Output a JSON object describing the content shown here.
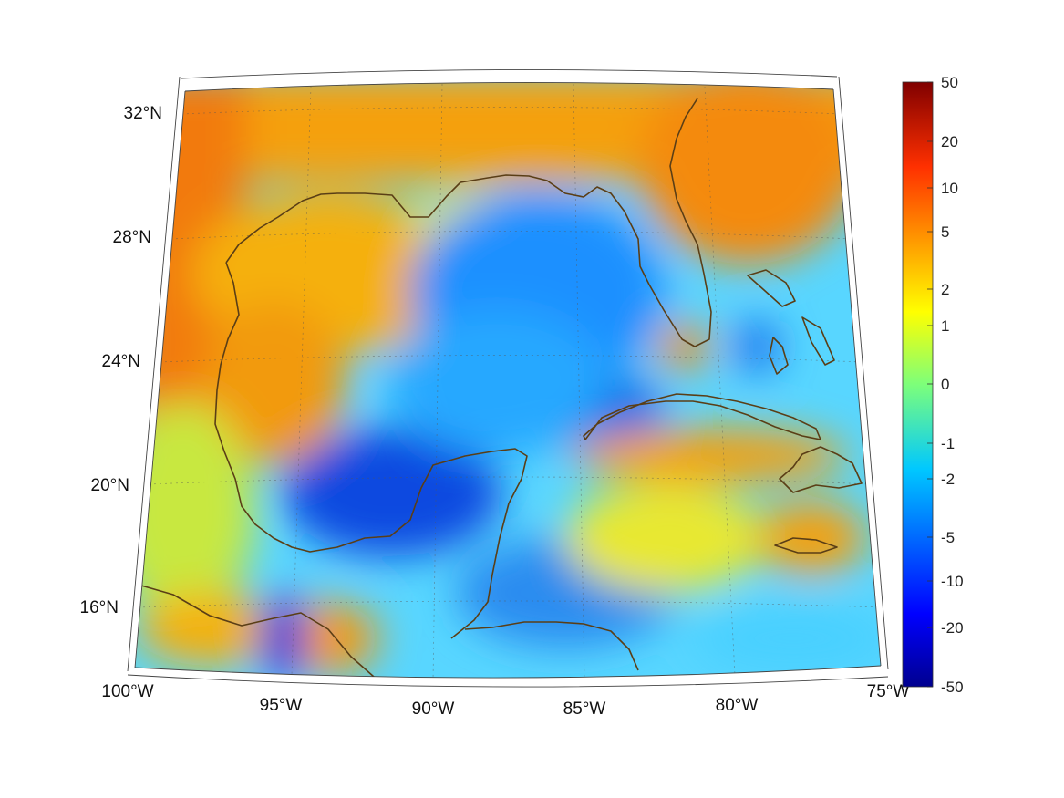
{
  "map": {
    "lon_labels": [
      "100°W",
      "95°W",
      "90°W",
      "85°W",
      "80°W",
      "75°W"
    ],
    "lat_labels": [
      "16°N",
      "20°N",
      "24°N",
      "28°N",
      "32°N"
    ]
  },
  "colorbar": {
    "colormap": "jet",
    "scale": "symmetric-log",
    "range": [
      -50,
      50
    ],
    "tick_labels": [
      "50",
      "20",
      "10",
      "5",
      "2",
      "1",
      "0",
      "-1",
      "-2",
      "-5",
      "-10",
      "-20",
      "-50"
    ]
  },
  "colors": {
    "coastline": "#5a3e16",
    "ocean_low": "#0a3fd6",
    "land_high": "#f57f0a"
  }
}
